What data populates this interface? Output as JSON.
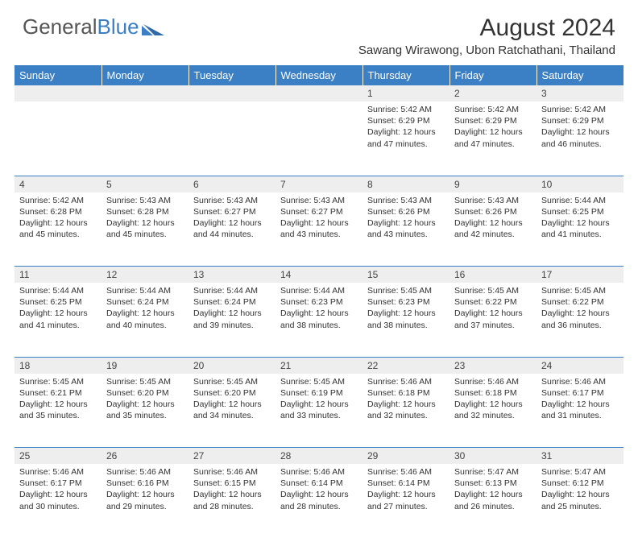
{
  "logo": {
    "text1": "General",
    "text2": "Blue"
  },
  "title": "August 2024",
  "location": "Sawang Wirawong, Ubon Ratchathani, Thailand",
  "colors": {
    "header_bg": "#3b7fc4",
    "header_text": "#ffffff",
    "daynum_bg": "#eeeeee",
    "border": "#3b7fc4",
    "body_text": "#333333"
  },
  "day_headers": [
    "Sunday",
    "Monday",
    "Tuesday",
    "Wednesday",
    "Thursday",
    "Friday",
    "Saturday"
  ],
  "weeks": [
    [
      {
        "n": "",
        "lines": []
      },
      {
        "n": "",
        "lines": []
      },
      {
        "n": "",
        "lines": []
      },
      {
        "n": "",
        "lines": []
      },
      {
        "n": "1",
        "lines": [
          "Sunrise: 5:42 AM",
          "Sunset: 6:29 PM",
          "Daylight: 12 hours",
          "and 47 minutes."
        ]
      },
      {
        "n": "2",
        "lines": [
          "Sunrise: 5:42 AM",
          "Sunset: 6:29 PM",
          "Daylight: 12 hours",
          "and 47 minutes."
        ]
      },
      {
        "n": "3",
        "lines": [
          "Sunrise: 5:42 AM",
          "Sunset: 6:29 PM",
          "Daylight: 12 hours",
          "and 46 minutes."
        ]
      }
    ],
    [
      {
        "n": "4",
        "lines": [
          "Sunrise: 5:42 AM",
          "Sunset: 6:28 PM",
          "Daylight: 12 hours",
          "and 45 minutes."
        ]
      },
      {
        "n": "5",
        "lines": [
          "Sunrise: 5:43 AM",
          "Sunset: 6:28 PM",
          "Daylight: 12 hours",
          "and 45 minutes."
        ]
      },
      {
        "n": "6",
        "lines": [
          "Sunrise: 5:43 AM",
          "Sunset: 6:27 PM",
          "Daylight: 12 hours",
          "and 44 minutes."
        ]
      },
      {
        "n": "7",
        "lines": [
          "Sunrise: 5:43 AM",
          "Sunset: 6:27 PM",
          "Daylight: 12 hours",
          "and 43 minutes."
        ]
      },
      {
        "n": "8",
        "lines": [
          "Sunrise: 5:43 AM",
          "Sunset: 6:26 PM",
          "Daylight: 12 hours",
          "and 43 minutes."
        ]
      },
      {
        "n": "9",
        "lines": [
          "Sunrise: 5:43 AM",
          "Sunset: 6:26 PM",
          "Daylight: 12 hours",
          "and 42 minutes."
        ]
      },
      {
        "n": "10",
        "lines": [
          "Sunrise: 5:44 AM",
          "Sunset: 6:25 PM",
          "Daylight: 12 hours",
          "and 41 minutes."
        ]
      }
    ],
    [
      {
        "n": "11",
        "lines": [
          "Sunrise: 5:44 AM",
          "Sunset: 6:25 PM",
          "Daylight: 12 hours",
          "and 41 minutes."
        ]
      },
      {
        "n": "12",
        "lines": [
          "Sunrise: 5:44 AM",
          "Sunset: 6:24 PM",
          "Daylight: 12 hours",
          "and 40 minutes."
        ]
      },
      {
        "n": "13",
        "lines": [
          "Sunrise: 5:44 AM",
          "Sunset: 6:24 PM",
          "Daylight: 12 hours",
          "and 39 minutes."
        ]
      },
      {
        "n": "14",
        "lines": [
          "Sunrise: 5:44 AM",
          "Sunset: 6:23 PM",
          "Daylight: 12 hours",
          "and 38 minutes."
        ]
      },
      {
        "n": "15",
        "lines": [
          "Sunrise: 5:45 AM",
          "Sunset: 6:23 PM",
          "Daylight: 12 hours",
          "and 38 minutes."
        ]
      },
      {
        "n": "16",
        "lines": [
          "Sunrise: 5:45 AM",
          "Sunset: 6:22 PM",
          "Daylight: 12 hours",
          "and 37 minutes."
        ]
      },
      {
        "n": "17",
        "lines": [
          "Sunrise: 5:45 AM",
          "Sunset: 6:22 PM",
          "Daylight: 12 hours",
          "and 36 minutes."
        ]
      }
    ],
    [
      {
        "n": "18",
        "lines": [
          "Sunrise: 5:45 AM",
          "Sunset: 6:21 PM",
          "Daylight: 12 hours",
          "and 35 minutes."
        ]
      },
      {
        "n": "19",
        "lines": [
          "Sunrise: 5:45 AM",
          "Sunset: 6:20 PM",
          "Daylight: 12 hours",
          "and 35 minutes."
        ]
      },
      {
        "n": "20",
        "lines": [
          "Sunrise: 5:45 AM",
          "Sunset: 6:20 PM",
          "Daylight: 12 hours",
          "and 34 minutes."
        ]
      },
      {
        "n": "21",
        "lines": [
          "Sunrise: 5:45 AM",
          "Sunset: 6:19 PM",
          "Daylight: 12 hours",
          "and 33 minutes."
        ]
      },
      {
        "n": "22",
        "lines": [
          "Sunrise: 5:46 AM",
          "Sunset: 6:18 PM",
          "Daylight: 12 hours",
          "and 32 minutes."
        ]
      },
      {
        "n": "23",
        "lines": [
          "Sunrise: 5:46 AM",
          "Sunset: 6:18 PM",
          "Daylight: 12 hours",
          "and 32 minutes."
        ]
      },
      {
        "n": "24",
        "lines": [
          "Sunrise: 5:46 AM",
          "Sunset: 6:17 PM",
          "Daylight: 12 hours",
          "and 31 minutes."
        ]
      }
    ],
    [
      {
        "n": "25",
        "lines": [
          "Sunrise: 5:46 AM",
          "Sunset: 6:17 PM",
          "Daylight: 12 hours",
          "and 30 minutes."
        ]
      },
      {
        "n": "26",
        "lines": [
          "Sunrise: 5:46 AM",
          "Sunset: 6:16 PM",
          "Daylight: 12 hours",
          "and 29 minutes."
        ]
      },
      {
        "n": "27",
        "lines": [
          "Sunrise: 5:46 AM",
          "Sunset: 6:15 PM",
          "Daylight: 12 hours",
          "and 28 minutes."
        ]
      },
      {
        "n": "28",
        "lines": [
          "Sunrise: 5:46 AM",
          "Sunset: 6:14 PM",
          "Daylight: 12 hours",
          "and 28 minutes."
        ]
      },
      {
        "n": "29",
        "lines": [
          "Sunrise: 5:46 AM",
          "Sunset: 6:14 PM",
          "Daylight: 12 hours",
          "and 27 minutes."
        ]
      },
      {
        "n": "30",
        "lines": [
          "Sunrise: 5:47 AM",
          "Sunset: 6:13 PM",
          "Daylight: 12 hours",
          "and 26 minutes."
        ]
      },
      {
        "n": "31",
        "lines": [
          "Sunrise: 5:47 AM",
          "Sunset: 6:12 PM",
          "Daylight: 12 hours",
          "and 25 minutes."
        ]
      }
    ]
  ]
}
